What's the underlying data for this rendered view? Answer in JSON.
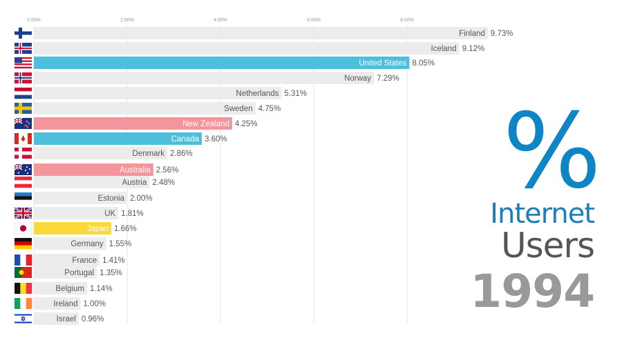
{
  "chart_data": {
    "type": "bar",
    "orientation": "horizontal",
    "title_symbol": "%",
    "title_line1": "Internet",
    "title_line2": "Users",
    "year": "1994",
    "xlim": [
      0,
      10
    ],
    "x_ticks": [
      0,
      2,
      4,
      6,
      8
    ],
    "x_tick_labels": [
      "0.00%",
      "2.00%",
      "4.00%",
      "6.00%",
      "8.00%"
    ],
    "categories": [
      "Finland",
      "Iceland",
      "United States",
      "Norway",
      "Netherlands",
      "Sweden",
      "New Zealand",
      "Canada",
      "Denmark",
      "Australia",
      "Austria",
      "Estonia",
      "UK",
      "Japan",
      "Germany",
      "France",
      "Portugal",
      "Belgium",
      "Ireland",
      "Israel"
    ],
    "values": [
      9.73,
      9.12,
      8.05,
      7.29,
      5.31,
      4.75,
      4.25,
      3.6,
      2.86,
      2.56,
      2.48,
      2.0,
      1.81,
      1.66,
      1.55,
      1.41,
      1.35,
      1.14,
      1.0,
      0.96
    ],
    "value_labels": [
      "9.73%",
      "9.12%",
      "8.05%",
      "7.29%",
      "5.31%",
      "4.75%",
      "4.25%",
      "3.60%",
      "2.86%",
      "2.56%",
      "2.48%",
      "2.00%",
      "1.81%",
      "1.66%",
      "1.55%",
      "1.41%",
      "1.35%",
      "1.14%",
      "1.00%",
      "0.96%"
    ],
    "bar_colors": [
      "#ececec",
      "#ececec",
      "#4bbfdc",
      "#ececec",
      "#ececec",
      "#ececec",
      "#f4949b",
      "#4bbfdc",
      "#ececec",
      "#f4949b",
      "#ececec",
      "#ececec",
      "#ececec",
      "#f9d93a",
      "#ececec",
      "#ececec",
      "#ececec",
      "#ececec",
      "#ececec",
      "#ececec"
    ],
    "highlighted": [
      "United States",
      "New Zealand",
      "Canada",
      "Australia",
      "Japan"
    ],
    "flags": [
      "finland-flag-icon",
      "iceland-flag-icon",
      "usa-flag-icon",
      "norway-flag-icon",
      "netherlands-flag-icon",
      "sweden-flag-icon",
      "new-zealand-flag-icon",
      "canada-flag-icon",
      "denmark-flag-icon",
      "australia-flag-icon",
      "austria-flag-icon",
      "estonia-flag-icon",
      "uk-flag-icon",
      "japan-flag-icon",
      "germany-flag-icon",
      "france-flag-icon",
      "portugal-flag-icon",
      "belgium-flag-icon",
      "ireland-flag-icon",
      "israel-flag-icon"
    ]
  }
}
